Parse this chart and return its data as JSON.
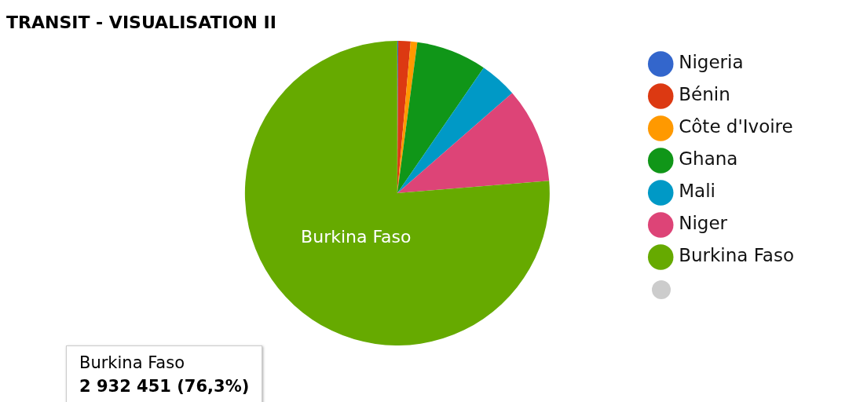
{
  "chart_data": {
    "type": "pie",
    "title": "TRANSIT - VISUALISATION II",
    "categories": [
      "Nigeria",
      "Bénin",
      "Côte d'Ivoire",
      "Ghana",
      "Mali",
      "Niger",
      "Burkina Faso",
      null
    ],
    "values": [
      0.1,
      1.3,
      0.7,
      7.5,
      4.0,
      10.1,
      76.3,
      0
    ],
    "colors": [
      "#3366cc",
      "#dc3912",
      "#ff9900",
      "#109618",
      "#0099c6",
      "#dd4477",
      "#66aa00",
      "#cccccc"
    ],
    "legend": "right",
    "annotations": [
      "Burkina Faso",
      "2 932 451 (76,3%)"
    ]
  }
}
